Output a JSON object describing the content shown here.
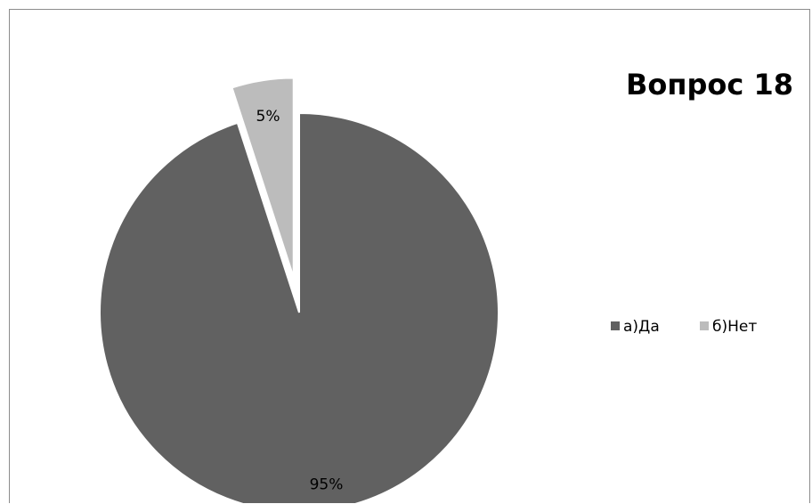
{
  "chart_data": {
    "type": "pie",
    "title": "Вопрос 18",
    "categories": [
      "а)Да",
      "б)Нет"
    ],
    "values": [
      95,
      5
    ],
    "value_labels": [
      "95%",
      "5%"
    ],
    "colors": [
      "#616161",
      "#bcbcbc"
    ],
    "exploded_slice": "б)Нет",
    "legend_position": "right"
  }
}
